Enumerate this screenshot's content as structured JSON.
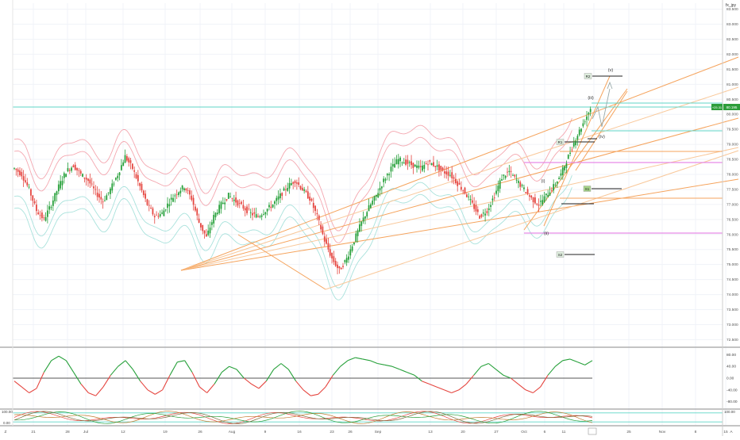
{
  "header": {
    "symbol": "fx_jpy"
  },
  "colors": {
    "bg": "#ffffff",
    "grid": "#f0f3f8",
    "separator": "#8a8a8a",
    "up": "#26a03a",
    "down": "#e5453f",
    "fork": "#f5a35c",
    "fork_light": "#f9c89a",
    "teal": "#5fd6c7",
    "magenta": "#e68ae6",
    "envelope_red": "#f4a7b0",
    "envelope_teal": "#a9e2dc",
    "price_badge": "#2d9d3a",
    "dark": "#222222"
  },
  "price_axis": {
    "ticks": [
      "82.000",
      "81.500",
      "81.000",
      "80.500",
      "80.000",
      "79.500",
      "79.000",
      "78.500",
      "78.000",
      "77.500",
      "77.000",
      "76.500",
      "76.000",
      "75.500",
      "75.000",
      "74.500",
      "74.000",
      "73.500",
      "73.000",
      "72.500"
    ],
    "extra_top_ticks": [
      "83.500",
      "83.000",
      "82.500"
    ],
    "last_price": "80.195",
    "last_price_left": "+25.31",
    "tick_vals": [
      83.5,
      83.0,
      82.5,
      82.0,
      81.5,
      81.0,
      80.5,
      80.0,
      79.5,
      79.0,
      78.5,
      78.0,
      77.5,
      77.0,
      76.5,
      76.0,
      75.5,
      75.0,
      74.5,
      74.0,
      73.5,
      73.0,
      72.5
    ]
  },
  "time_axis": {
    "labels": [
      "21",
      "28",
      "Jul",
      "12",
      "19",
      "26",
      "Aug",
      "9",
      "16",
      "23",
      "26",
      "Sep",
      "13",
      "20",
      "27",
      "Oct",
      "6",
      "11",
      "18",
      "25",
      "Nov",
      "8",
      "15"
    ],
    "left_corner": "Z",
    "right_corner": "A"
  },
  "wave_labels": [
    "(i)",
    "(ii)",
    "(iii)",
    "(iv)",
    "(v)"
  ],
  "level_tags": [
    "R2",
    "R1",
    "S1",
    "S2"
  ],
  "oscillator1": {
    "ticks": [
      "80.00",
      "40.00",
      "0.00",
      "-40.00",
      "-80.00"
    ],
    "tick_vals": [
      80,
      40,
      0,
      -40,
      -80
    ]
  },
  "oscillator2": {
    "top_label": "100.00",
    "bottom_label": "0.00",
    "right_label": "100.00"
  },
  "chart_data": {
    "type": "line",
    "title": "",
    "xlabel": "",
    "ylabel": "",
    "ylim": [
      72.3,
      83.7
    ],
    "series": [
      {
        "name": "",
        "values": [
          78.2,
          78.0,
          77.5,
          76.8,
          76.5,
          77.0,
          77.6,
          78.1,
          78.3,
          78.0,
          77.8,
          77.4,
          77.1,
          77.5,
          78.0,
          78.6,
          78.2,
          77.6,
          77.0,
          76.6,
          76.7,
          77.1,
          77.4,
          77.6,
          77.2,
          76.4,
          75.9,
          76.6,
          77.0,
          77.3,
          77.1,
          76.9,
          76.7,
          76.6,
          76.8,
          77.0,
          77.3,
          77.6,
          77.8,
          77.5,
          77.2,
          76.6,
          75.8,
          75.2,
          74.8,
          75.2,
          75.8,
          76.4,
          76.9,
          77.3,
          77.8,
          78.2,
          78.5,
          78.4,
          78.3,
          78.2,
          78.4,
          78.3,
          78.1,
          78.0,
          77.7,
          77.4,
          77.0,
          76.6,
          76.8,
          77.3,
          77.9,
          78.1,
          77.8,
          77.5,
          77.2,
          77.0,
          77.3,
          77.6,
          78.0,
          78.6,
          79.2,
          79.7,
          80.2
        ]
      }
    ],
    "osc_series": [
      {
        "name": "",
        "values": [
          -10,
          -30,
          -50,
          -35,
          20,
          60,
          75,
          60,
          20,
          -20,
          -50,
          -60,
          -30,
          10,
          40,
          60,
          30,
          -10,
          -40,
          -55,
          -40,
          10,
          55,
          60,
          20,
          -30,
          -50,
          -20,
          20,
          40,
          30,
          0,
          -20,
          -35,
          -10,
          30,
          50,
          30,
          -10,
          -40,
          -60,
          -55,
          -30,
          10,
          40,
          60,
          70,
          65,
          60,
          50,
          45,
          40,
          30,
          20,
          10,
          -10,
          -20,
          -30,
          -40,
          -50,
          -40,
          -20,
          10,
          40,
          50,
          30,
          10,
          0,
          -20,
          -40,
          -50,
          -30,
          10,
          40,
          60,
          65,
          55,
          45,
          60
        ]
      }
    ]
  }
}
